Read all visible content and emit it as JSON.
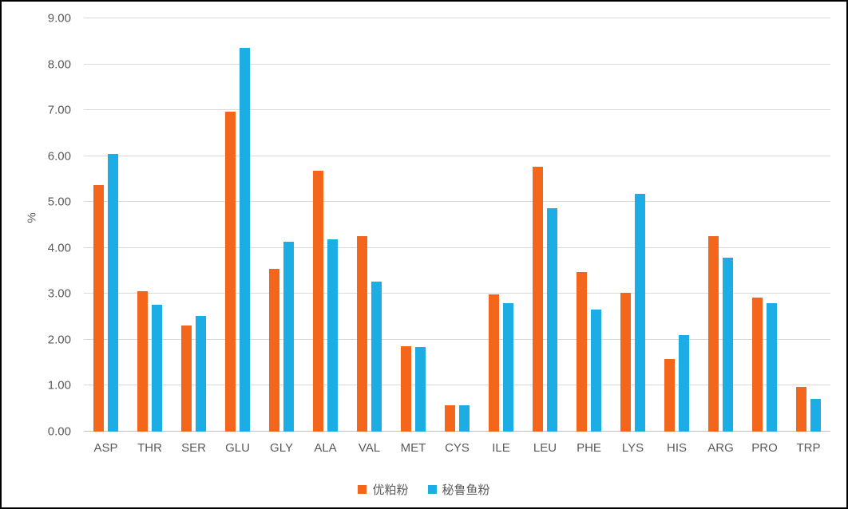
{
  "chart_data": {
    "type": "bar",
    "title": "",
    "xlabel": "",
    "ylabel": "%",
    "ylim": [
      0,
      9
    ],
    "ytick_step": 1,
    "ytick_labels": [
      "0.00",
      "1.00",
      "2.00",
      "3.00",
      "4.00",
      "5.00",
      "6.00",
      "7.00",
      "8.00",
      "9.00"
    ],
    "grid": true,
    "legend_position": "bottom",
    "categories": [
      "ASP",
      "THR",
      "SER",
      "GLU",
      "GLY",
      "ALA",
      "VAL",
      "MET",
      "CYS",
      "ILE",
      "LEU",
      "PHE",
      "LYS",
      "HIS",
      "ARG",
      "PRO",
      "TRP"
    ],
    "series": [
      {
        "name": "优粕粉",
        "color": "#F3661C",
        "values": [
          5.37,
          3.06,
          2.31,
          6.97,
          3.55,
          5.69,
          4.26,
          1.86,
          0.57,
          2.99,
          5.76,
          3.47,
          3.02,
          1.58,
          4.26,
          2.92,
          0.97
        ]
      },
      {
        "name": "秘鲁鱼粉",
        "color": "#1CADE4",
        "values": [
          6.04,
          2.77,
          2.52,
          8.36,
          4.14,
          4.19,
          3.27,
          1.85,
          0.57,
          2.8,
          4.87,
          2.66,
          5.17,
          2.1,
          3.79,
          2.8,
          0.72
        ]
      }
    ]
  },
  "colors": {
    "axis_text": "#595959",
    "gridline": "#D9D9D9",
    "axis_line": "#BFBFBF",
    "background": "#FFFFFF",
    "border": "#000000"
  }
}
